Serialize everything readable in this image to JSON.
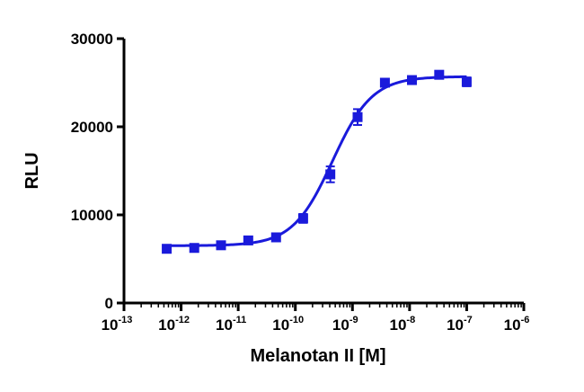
{
  "chart_data": {
    "type": "scatter",
    "title": "",
    "xlabel": "Melanotan II [M]",
    "ylabel": "RLU",
    "x_scale": "log10",
    "xlim": [
      1e-13,
      1e-06
    ],
    "ylim": [
      0,
      30000
    ],
    "x_ticks": [
      {
        "base": "10",
        "exp": "-13",
        "value": 1e-13
      },
      {
        "base": "10",
        "exp": "-12",
        "value": 1e-12
      },
      {
        "base": "10",
        "exp": "-11",
        "value": 1e-11
      },
      {
        "base": "10",
        "exp": "-10",
        "value": 1e-10
      },
      {
        "base": "10",
        "exp": "-9",
        "value": 1e-09
      },
      {
        "base": "10",
        "exp": "-8",
        "value": 1e-08
      },
      {
        "base": "10",
        "exp": "-7",
        "value": 1e-07
      },
      {
        "base": "10",
        "exp": "-6",
        "value": 1e-06
      }
    ],
    "y_ticks": [
      "0",
      "10000",
      "20000",
      "30000"
    ],
    "y_tick_values": [
      0,
      10000,
      20000,
      30000
    ],
    "grid": false,
    "legend": "none",
    "series_color": "#1a1adb",
    "series": [
      {
        "marker": "square",
        "points": [
          {
            "x": 5.6e-13,
            "y": 6150,
            "err": 150
          },
          {
            "x": 1.7e-12,
            "y": 6250,
            "err": 150
          },
          {
            "x": 5e-12,
            "y": 6550,
            "err": 200
          },
          {
            "x": 1.5e-11,
            "y": 7100,
            "err": 200
          },
          {
            "x": 4.6e-11,
            "y": 7450,
            "err": 200
          },
          {
            "x": 1.37e-10,
            "y": 9600,
            "err": 500
          },
          {
            "x": 4.1e-10,
            "y": 14600,
            "err": 900
          },
          {
            "x": 1.23e-09,
            "y": 21100,
            "err": 900
          },
          {
            "x": 3.7e-09,
            "y": 25000,
            "err": 250
          },
          {
            "x": 1.1e-08,
            "y": 25300,
            "err": 200
          },
          {
            "x": 3.3e-08,
            "y": 25900,
            "err": 300
          },
          {
            "x": 1e-07,
            "y": 25100,
            "err": 500
          }
        ],
        "fit": {
          "model": "sigmoidal dose-response",
          "bottom": 6500,
          "top": 25700,
          "log_ec50": -9.35,
          "hill_slope": 1.25
        }
      }
    ]
  }
}
